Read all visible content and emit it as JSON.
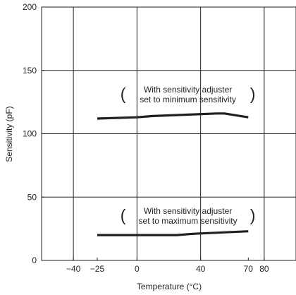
{
  "chart_data": {
    "type": "line",
    "xlabel": "Temperature (°C)",
    "ylabel": "Sensitivity (pF)",
    "xlim": [
      -60,
      100
    ],
    "ylim": [
      0,
      200
    ],
    "x_ticks": [
      -40,
      -25,
      0,
      40,
      70,
      80
    ],
    "x_tick_labels": [
      "−40",
      "−25",
      "0",
      "40",
      "70",
      "80"
    ],
    "y_ticks": [
      0,
      50,
      100,
      150,
      200
    ],
    "y_tick_labels": [
      "0",
      "50",
      "100",
      "150",
      "200"
    ],
    "grid_x": [
      -40,
      0,
      40,
      80
    ],
    "grid_y": [
      50,
      100,
      150
    ],
    "grid": true,
    "series": [
      {
        "values": [
          [
            -25,
            112
          ],
          [
            0,
            113
          ],
          [
            10,
            114
          ],
          [
            30,
            115
          ],
          [
            50,
            116
          ],
          [
            55,
            116
          ],
          [
            70,
            113
          ]
        ],
        "color": "#231f20"
      },
      {
        "values": [
          [
            -25,
            20
          ],
          [
            0,
            20
          ],
          [
            25,
            20
          ],
          [
            35,
            21
          ],
          [
            70,
            23
          ]
        ],
        "color": "#231f20"
      }
    ],
    "annotations": [
      {
        "lines": [
          "With sensitivity adjuster",
          "set to minimum sensitivity"
        ],
        "anchor": [
          32,
          131
        ]
      },
      {
        "lines": [
          "With sensitivity adjuster",
          "set to maximum sensitivity"
        ],
        "anchor": [
          32,
          35
        ]
      }
    ]
  }
}
